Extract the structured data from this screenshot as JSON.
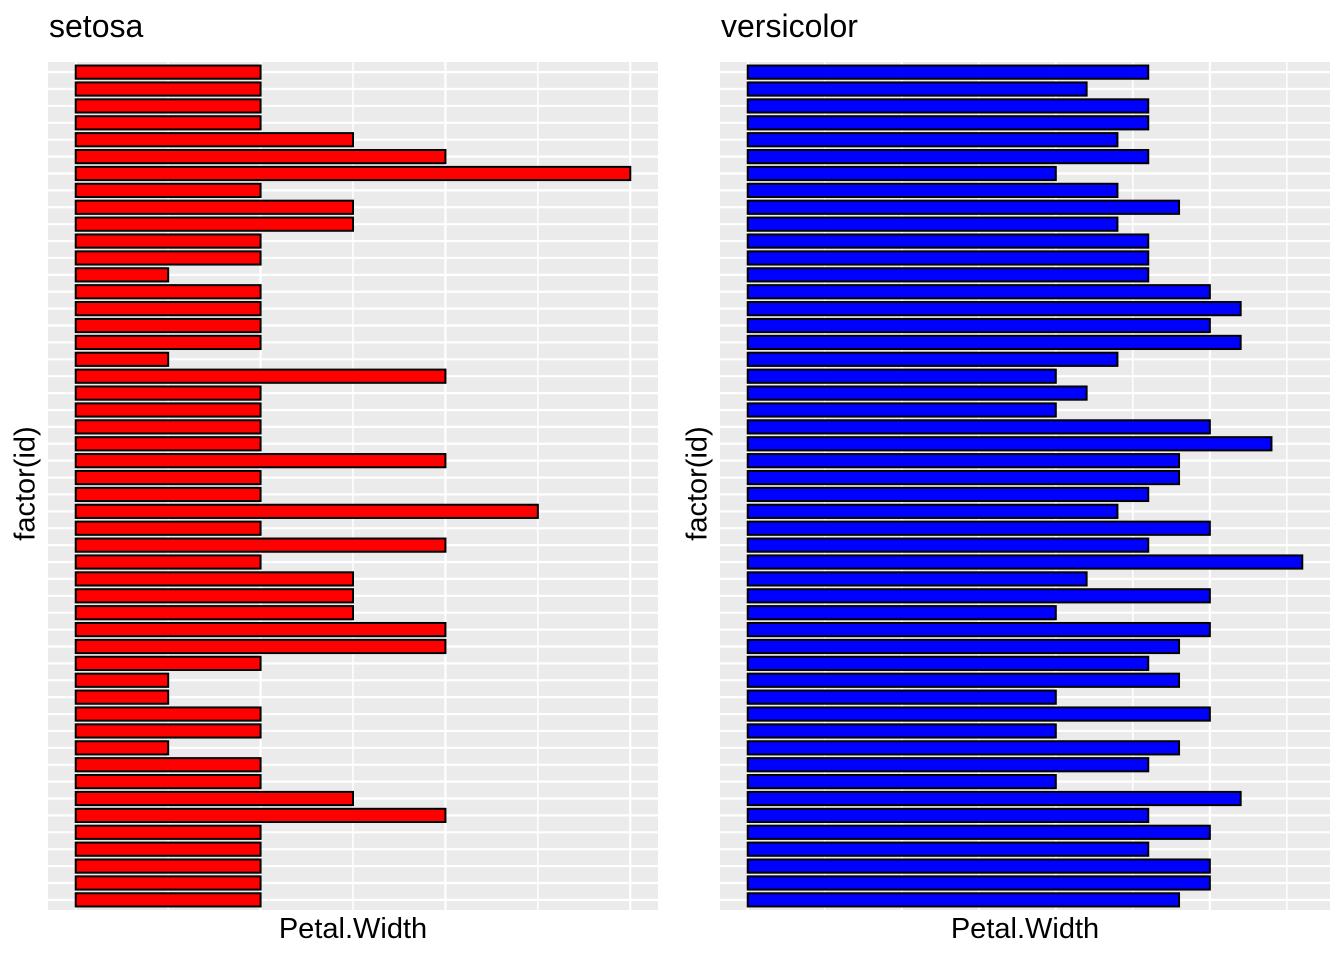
{
  "page": {
    "background": "#FFFFFF"
  },
  "styles": {
    "panel_background": "#EBEBEB",
    "gridline_color": "#FFFFFF",
    "major_gridline_width": 2.2,
    "minor_gridline_width": 1.5,
    "bar_outline_color": "#000000",
    "bar_outline_width": 2,
    "text_color": "#000000"
  },
  "chart_data": [
    {
      "type": "bar",
      "orientation": "horizontal",
      "title": "setosa",
      "xlabel": "Petal.Width",
      "ylabel": "factor(id)",
      "series": "iris setosa Petal.Width, one bar per observation id, id 50 at top to id 1 at bottom",
      "bar_color": "#FF0000",
      "xlim": [
        0,
        0.6
      ],
      "x_expansion_mult": 0.05,
      "x_major_gridlines": [
        0,
        0.2,
        0.4,
        0.6
      ],
      "x_minor_gridlines": [
        0.1,
        0.3,
        0.5
      ],
      "x_axis_tick_labels_shown": false,
      "y_axis_tick_labels_shown": false,
      "legend": "none",
      "n_bars": 50,
      "values_top_to_bottom": [
        0.2,
        0.2,
        0.2,
        0.2,
        0.3,
        0.4,
        0.6,
        0.2,
        0.3,
        0.3,
        0.2,
        0.2,
        0.1,
        0.2,
        0.2,
        0.2,
        0.2,
        0.1,
        0.4,
        0.2,
        0.2,
        0.2,
        0.2,
        0.4,
        0.2,
        0.2,
        0.5,
        0.2,
        0.4,
        0.2,
        0.3,
        0.3,
        0.3,
        0.4,
        0.4,
        0.2,
        0.1,
        0.1,
        0.2,
        0.2,
        0.1,
        0.2,
        0.2,
        0.3,
        0.4,
        0.2,
        0.2,
        0.2,
        0.2,
        0.2
      ]
    },
    {
      "type": "bar",
      "orientation": "horizontal",
      "title": "versicolor",
      "xlabel": "Petal.Width",
      "ylabel": "factor(id)",
      "series": "iris versicolor Petal.Width, one bar per observation id, id 100 at top to id 51 at bottom",
      "bar_color": "#0000FF",
      "xlim": [
        0,
        1.8
      ],
      "x_expansion_mult": 0.05,
      "x_major_gridlines": [
        0,
        0.5,
        1.0,
        1.5
      ],
      "x_minor_gridlines": [
        0.25,
        0.75,
        1.25,
        1.75
      ],
      "x_axis_tick_labels_shown": false,
      "y_axis_tick_labels_shown": false,
      "legend": "none",
      "n_bars": 50,
      "values_top_to_bottom": [
        1.3,
        1.1,
        1.3,
        1.3,
        1.2,
        1.3,
        1.0,
        1.2,
        1.4,
        1.2,
        1.3,
        1.3,
        1.3,
        1.5,
        1.6,
        1.5,
        1.6,
        1.2,
        1.0,
        1.1,
        1.0,
        1.5,
        1.7,
        1.4,
        1.4,
        1.3,
        1.2,
        1.5,
        1.3,
        1.8,
        1.1,
        1.5,
        1.0,
        1.5,
        1.4,
        1.3,
        1.4,
        1.0,
        1.5,
        1.0,
        1.4,
        1.3,
        1.0,
        1.6,
        1.3,
        1.5,
        1.3,
        1.5,
        1.5,
        1.4
      ]
    }
  ]
}
